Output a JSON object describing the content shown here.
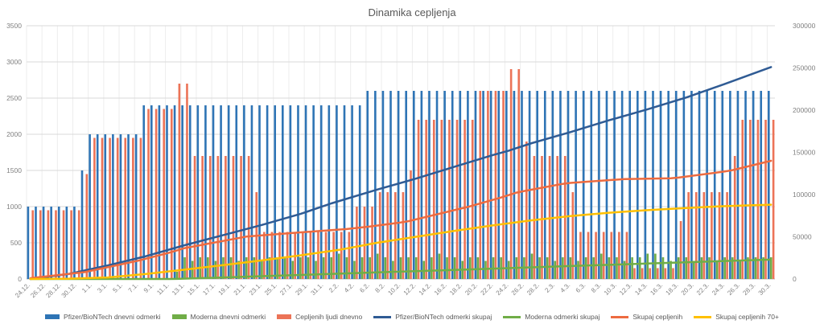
{
  "title": "Dinamika cepljenja",
  "chart_data": {
    "type": "combo-bar-line",
    "title": "Dinamika cepljenja",
    "grid": true,
    "legend_position": "bottom",
    "x_tick_every": 2,
    "left_axis": {
      "min": 0,
      "max": 3500,
      "step": 500
    },
    "right_axis": {
      "min": 0,
      "max": 300000,
      "step": 50000
    },
    "categories": [
      "24.12.",
      "25.12.",
      "26.12.",
      "27.12.",
      "28.12.",
      "29.12.",
      "30.12.",
      "31.12.",
      "1.1.",
      "2.1.",
      "3.1.",
      "4.1.",
      "5.1.",
      "6.1.",
      "7.1.",
      "8.1.",
      "9.1.",
      "10.1.",
      "11.1.",
      "12.1.",
      "13.1.",
      "14.1.",
      "15.1.",
      "16.1.",
      "17.1.",
      "18.1.",
      "19.1.",
      "20.1.",
      "21.1.",
      "22.1.",
      "23.1.",
      "24.1.",
      "25.1.",
      "26.1.",
      "27.1.",
      "28.1.",
      "29.1.",
      "30.1.",
      "31.1.",
      "1.2.",
      "2.2.",
      "3.2.",
      "4.2.",
      "5.2.",
      "6.2.",
      "7.2.",
      "8.2.",
      "9.2.",
      "10.2.",
      "11.2.",
      "12.2.",
      "13.2.",
      "14.2.",
      "15.2.",
      "16.2.",
      "17.2.",
      "18.2.",
      "19.2.",
      "20.2.",
      "21.2.",
      "22.2.",
      "23.2.",
      "24.2.",
      "25.2.",
      "26.2.",
      "27.2.",
      "28.2.",
      "1.3.",
      "2.3.",
      "3.3.",
      "4.3.",
      "5.3.",
      "6.3.",
      "7.3.",
      "8.3.",
      "9.3.",
      "10.3.",
      "11.3.",
      "12.3.",
      "13.3.",
      "14.3.",
      "15.3.",
      "16.3.",
      "17.3.",
      "18.3.",
      "19.3.",
      "20.3.",
      "21.3.",
      "22.3.",
      "23.3.",
      "24.3.",
      "25.3.",
      "26.3.",
      "27.3.",
      "28.3.",
      "29.3.",
      "30.3."
    ],
    "series": [
      {
        "name": "Pfizer/BioNTech dnevni odmerki",
        "type": "bar",
        "axis": "left",
        "color": "#2E74B5",
        "values": [
          1000,
          1000,
          1000,
          1000,
          1000,
          1000,
          1000,
          1500,
          2000,
          2000,
          2000,
          2000,
          2000,
          2000,
          2000,
          2400,
          2400,
          2400,
          2400,
          2400,
          2400,
          2400,
          2400,
          2400,
          2400,
          2400,
          2400,
          2400,
          2400,
          2400,
          2400,
          2400,
          2400,
          2400,
          2400,
          2400,
          2400,
          2400,
          2400,
          2400,
          2400,
          2400,
          2400,
          2400,
          2600,
          2600,
          2600,
          2600,
          2600,
          2600,
          2600,
          2600,
          2600,
          2600,
          2600,
          2600,
          2600,
          2600,
          2600,
          2600,
          2600,
          2600,
          2600,
          2600,
          2600,
          2600,
          2600,
          2600,
          2600,
          2600,
          2600,
          2600,
          2600,
          2600,
          2600,
          2600,
          2600,
          2600,
          2600,
          2600,
          2600,
          2600,
          2600,
          2600,
          2600,
          2600,
          2600,
          2600,
          2600,
          2600,
          2600,
          2600,
          2600,
          2600,
          2600,
          2600,
          2600
        ]
      },
      {
        "name": "Moderna dnevni odmerki",
        "type": "bar",
        "axis": "left",
        "color": "#70AD47",
        "values": [
          0,
          0,
          0,
          0,
          0,
          0,
          0,
          0,
          0,
          0,
          0,
          0,
          0,
          0,
          0,
          0,
          0,
          0,
          0,
          100,
          300,
          250,
          300,
          300,
          250,
          300,
          300,
          250,
          300,
          300,
          250,
          300,
          300,
          300,
          250,
          300,
          300,
          250,
          300,
          300,
          350,
          300,
          250,
          300,
          300,
          350,
          300,
          250,
          300,
          300,
          300,
          250,
          300,
          350,
          300,
          300,
          250,
          300,
          300,
          250,
          300,
          300,
          250,
          300,
          300,
          350,
          300,
          300,
          250,
          300,
          300,
          250,
          300,
          300,
          350,
          300,
          300,
          250,
          300,
          300,
          350,
          350,
          300,
          250,
          300,
          300,
          250,
          300,
          300,
          250,
          300,
          300,
          250,
          300,
          300,
          300,
          300
        ]
      },
      {
        "name": "Cepljenih ljudi dnevno",
        "type": "bar",
        "axis": "left",
        "color": "#EC7357",
        "values": [
          950,
          950,
          950,
          950,
          950,
          950,
          950,
          1450,
          1950,
          1950,
          1950,
          1950,
          1950,
          1950,
          1950,
          2350,
          2350,
          2350,
          2350,
          2700,
          2700,
          1700,
          1700,
          1700,
          1700,
          1700,
          1700,
          1700,
          1700,
          1200,
          650,
          650,
          650,
          650,
          650,
          650,
          650,
          650,
          650,
          650,
          650,
          650,
          1000,
          1000,
          1000,
          1200,
          1200,
          1200,
          1200,
          1500,
          2200,
          2200,
          2200,
          2200,
          2200,
          2200,
          2200,
          2200,
          2600,
          2600,
          2600,
          2600,
          2900,
          2900,
          1900,
          1700,
          1700,
          1700,
          1700,
          1700,
          1200,
          650,
          650,
          650,
          650,
          650,
          650,
          650,
          150,
          150,
          150,
          150,
          150,
          150,
          800,
          1200,
          1200,
          1200,
          1200,
          1200,
          1200,
          1700,
          2200,
          2200,
          2200,
          2200,
          2200
        ]
      },
      {
        "name": "Pfizer/BioNTech odmerki skupaj",
        "type": "line",
        "axis": "right",
        "color": "#2F5B94",
        "points": [
          [
            0,
            0
          ],
          [
            5,
            6000
          ],
          [
            10,
            16000
          ],
          [
            15,
            27000
          ],
          [
            20,
            40000
          ],
          [
            25,
            52000
          ],
          [
            30,
            64000
          ],
          [
            35,
            77000
          ],
          [
            39,
            89500
          ],
          [
            45,
            106000
          ],
          [
            50,
            119000
          ],
          [
            55,
            133000
          ],
          [
            60,
            147000
          ],
          [
            62,
            152000
          ],
          [
            65,
            161000
          ],
          [
            70,
            174000
          ],
          [
            75,
            188000
          ],
          [
            80,
            201000
          ],
          [
            85,
            215000
          ],
          [
            90,
            231000
          ],
          [
            96,
            251000
          ]
        ]
      },
      {
        "name": "Moderna odmerki skupaj",
        "type": "line",
        "axis": "right",
        "color": "#70AD47",
        "points": [
          [
            0,
            0
          ],
          [
            18,
            0
          ],
          [
            19,
            100
          ],
          [
            25,
            1800
          ],
          [
            30,
            3300
          ],
          [
            35,
            4800
          ],
          [
            40,
            6300
          ],
          [
            45,
            7800
          ],
          [
            50,
            9300
          ],
          [
            55,
            10800
          ],
          [
            60,
            12300
          ],
          [
            65,
            13800
          ],
          [
            70,
            15300
          ],
          [
            75,
            16800
          ],
          [
            80,
            18300
          ],
          [
            85,
            19800
          ],
          [
            90,
            21300
          ],
          [
            96,
            23000
          ]
        ]
      },
      {
        "name": "Skupaj cepljenih",
        "type": "line",
        "axis": "right",
        "color": "#ED6B40",
        "points": [
          [
            0,
            950
          ],
          [
            7,
            8100
          ],
          [
            14,
            21750
          ],
          [
            18,
            31150
          ],
          [
            20,
            36550
          ],
          [
            28,
            50150
          ],
          [
            34,
            54600
          ],
          [
            41,
            59150
          ],
          [
            44,
            62150
          ],
          [
            48,
            66950
          ],
          [
            49,
            68450
          ],
          [
            57,
            86050
          ],
          [
            61,
            96450
          ],
          [
            63,
            102250
          ],
          [
            64,
            104150
          ],
          [
            69,
            112650
          ],
          [
            70,
            113850
          ],
          [
            77,
            118400
          ],
          [
            83,
            119300
          ],
          [
            84,
            120100
          ],
          [
            90,
            127300
          ],
          [
            91,
            129000
          ],
          [
            96,
            140000
          ]
        ]
      },
      {
        "name": "Skupaj cepljenih 70+",
        "type": "line",
        "axis": "right",
        "color": "#FFC000",
        "points": [
          [
            0,
            0
          ],
          [
            5,
            400
          ],
          [
            10,
            1800
          ],
          [
            15,
            6000
          ],
          [
            20,
            11000
          ],
          [
            25,
            16500
          ],
          [
            30,
            22000
          ],
          [
            35,
            28000
          ],
          [
            40,
            34500
          ],
          [
            45,
            43000
          ],
          [
            50,
            50000
          ],
          [
            55,
            57000
          ],
          [
            60,
            63500
          ],
          [
            65,
            69500
          ],
          [
            70,
            74500
          ],
          [
            75,
            78500
          ],
          [
            80,
            81500
          ],
          [
            84,
            83500
          ],
          [
            88,
            85500
          ],
          [
            92,
            87000
          ],
          [
            96,
            88000
          ]
        ]
      }
    ]
  },
  "style": {
    "grid_color": "#D9D9D9",
    "vgrid_color": "#EDEDED",
    "axis_line_color": "#BFBFBF",
    "axis_text_color": "#808080",
    "title_color": "#595959"
  }
}
